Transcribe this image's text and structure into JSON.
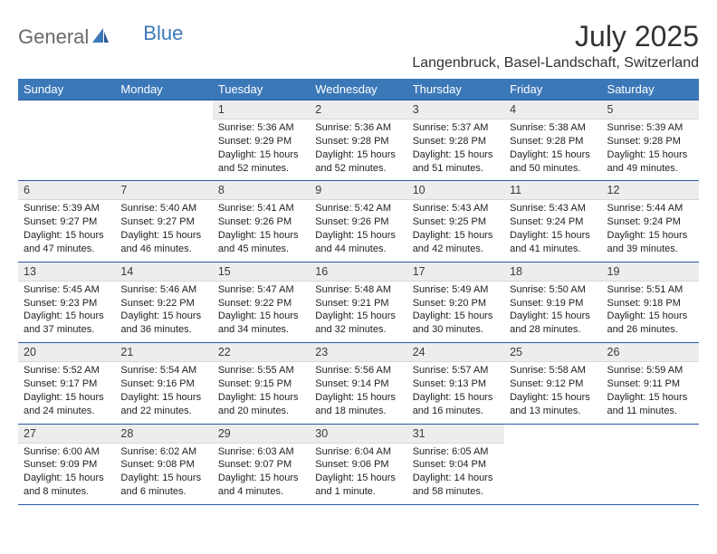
{
  "logo": {
    "part1": "General",
    "part2": "Blue"
  },
  "title": "July 2025",
  "location": "Langenbruck, Basel-Landschaft, Switzerland",
  "colors": {
    "header_bg": "#3b78b8",
    "header_text": "#ffffff",
    "daynum_bg": "#ededed",
    "rule": "#2958a6",
    "logo_gray": "#6a6a6a",
    "logo_blue": "#3b78b8"
  },
  "dayHeaders": [
    "Sunday",
    "Monday",
    "Tuesday",
    "Wednesday",
    "Thursday",
    "Friday",
    "Saturday"
  ],
  "weeks": [
    {
      "nums": [
        "",
        "",
        "1",
        "2",
        "3",
        "4",
        "5"
      ],
      "cells": [
        null,
        null,
        {
          "sunrise": "5:36 AM",
          "sunset": "9:29 PM",
          "dl": "15 hours and 52 minutes."
        },
        {
          "sunrise": "5:36 AM",
          "sunset": "9:28 PM",
          "dl": "15 hours and 52 minutes."
        },
        {
          "sunrise": "5:37 AM",
          "sunset": "9:28 PM",
          "dl": "15 hours and 51 minutes."
        },
        {
          "sunrise": "5:38 AM",
          "sunset": "9:28 PM",
          "dl": "15 hours and 50 minutes."
        },
        {
          "sunrise": "5:39 AM",
          "sunset": "9:28 PM",
          "dl": "15 hours and 49 minutes."
        }
      ]
    },
    {
      "nums": [
        "6",
        "7",
        "8",
        "9",
        "10",
        "11",
        "12"
      ],
      "cells": [
        {
          "sunrise": "5:39 AM",
          "sunset": "9:27 PM",
          "dl": "15 hours and 47 minutes."
        },
        {
          "sunrise": "5:40 AM",
          "sunset": "9:27 PM",
          "dl": "15 hours and 46 minutes."
        },
        {
          "sunrise": "5:41 AM",
          "sunset": "9:26 PM",
          "dl": "15 hours and 45 minutes."
        },
        {
          "sunrise": "5:42 AM",
          "sunset": "9:26 PM",
          "dl": "15 hours and 44 minutes."
        },
        {
          "sunrise": "5:43 AM",
          "sunset": "9:25 PM",
          "dl": "15 hours and 42 minutes."
        },
        {
          "sunrise": "5:43 AM",
          "sunset": "9:24 PM",
          "dl": "15 hours and 41 minutes."
        },
        {
          "sunrise": "5:44 AM",
          "sunset": "9:24 PM",
          "dl": "15 hours and 39 minutes."
        }
      ]
    },
    {
      "nums": [
        "13",
        "14",
        "15",
        "16",
        "17",
        "18",
        "19"
      ],
      "cells": [
        {
          "sunrise": "5:45 AM",
          "sunset": "9:23 PM",
          "dl": "15 hours and 37 minutes."
        },
        {
          "sunrise": "5:46 AM",
          "sunset": "9:22 PM",
          "dl": "15 hours and 36 minutes."
        },
        {
          "sunrise": "5:47 AM",
          "sunset": "9:22 PM",
          "dl": "15 hours and 34 minutes."
        },
        {
          "sunrise": "5:48 AM",
          "sunset": "9:21 PM",
          "dl": "15 hours and 32 minutes."
        },
        {
          "sunrise": "5:49 AM",
          "sunset": "9:20 PM",
          "dl": "15 hours and 30 minutes."
        },
        {
          "sunrise": "5:50 AM",
          "sunset": "9:19 PM",
          "dl": "15 hours and 28 minutes."
        },
        {
          "sunrise": "5:51 AM",
          "sunset": "9:18 PM",
          "dl": "15 hours and 26 minutes."
        }
      ]
    },
    {
      "nums": [
        "20",
        "21",
        "22",
        "23",
        "24",
        "25",
        "26"
      ],
      "cells": [
        {
          "sunrise": "5:52 AM",
          "sunset": "9:17 PM",
          "dl": "15 hours and 24 minutes."
        },
        {
          "sunrise": "5:54 AM",
          "sunset": "9:16 PM",
          "dl": "15 hours and 22 minutes."
        },
        {
          "sunrise": "5:55 AM",
          "sunset": "9:15 PM",
          "dl": "15 hours and 20 minutes."
        },
        {
          "sunrise": "5:56 AM",
          "sunset": "9:14 PM",
          "dl": "15 hours and 18 minutes."
        },
        {
          "sunrise": "5:57 AM",
          "sunset": "9:13 PM",
          "dl": "15 hours and 16 minutes."
        },
        {
          "sunrise": "5:58 AM",
          "sunset": "9:12 PM",
          "dl": "15 hours and 13 minutes."
        },
        {
          "sunrise": "5:59 AM",
          "sunset": "9:11 PM",
          "dl": "15 hours and 11 minutes."
        }
      ]
    },
    {
      "nums": [
        "27",
        "28",
        "29",
        "30",
        "31",
        "",
        ""
      ],
      "cells": [
        {
          "sunrise": "6:00 AM",
          "sunset": "9:09 PM",
          "dl": "15 hours and 8 minutes."
        },
        {
          "sunrise": "6:02 AM",
          "sunset": "9:08 PM",
          "dl": "15 hours and 6 minutes."
        },
        {
          "sunrise": "6:03 AM",
          "sunset": "9:07 PM",
          "dl": "15 hours and 4 minutes."
        },
        {
          "sunrise": "6:04 AM",
          "sunset": "9:06 PM",
          "dl": "15 hours and 1 minute."
        },
        {
          "sunrise": "6:05 AM",
          "sunset": "9:04 PM",
          "dl": "14 hours and 58 minutes."
        },
        null,
        null
      ]
    }
  ],
  "labels": {
    "sunrise": "Sunrise: ",
    "sunset": "Sunset: ",
    "daylight": "Daylight: "
  }
}
